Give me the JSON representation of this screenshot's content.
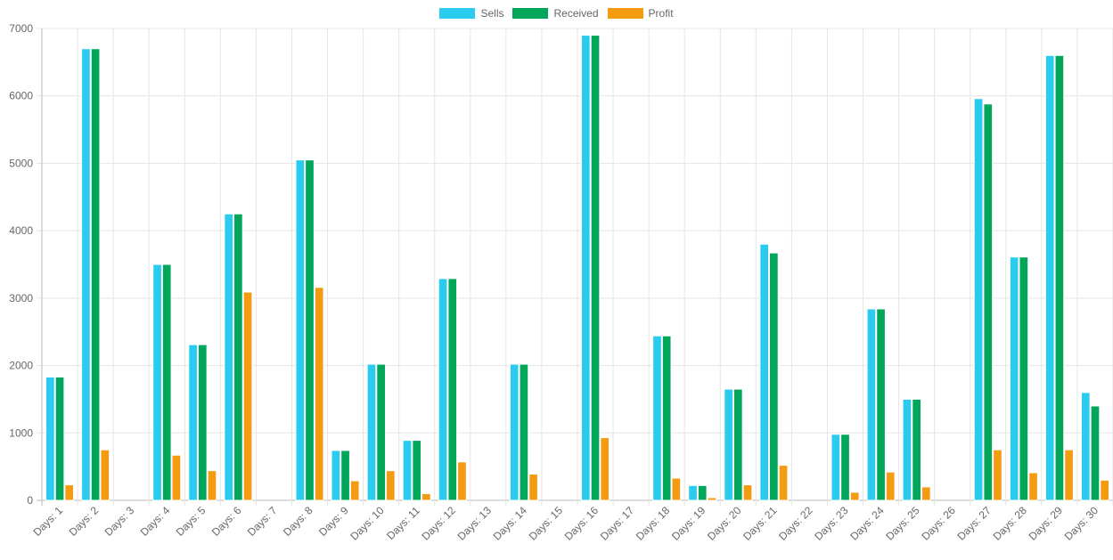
{
  "chart_data": {
    "type": "bar",
    "categories": [
      "Days: 1",
      "Days: 2",
      "Days: 3",
      "Days: 4",
      "Days: 5",
      "Days: 6",
      "Days: 7",
      "Days: 8",
      "Days: 9",
      "Days: 10",
      "Days: 11",
      "Days: 12",
      "Days: 13",
      "Days: 14",
      "Days: 15",
      "Days: 16",
      "Days: 17",
      "Days: 18",
      "Days: 19",
      "Days: 20",
      "Days: 21",
      "Days: 22",
      "Days: 23",
      "Days: 24",
      "Days: 25",
      "Days: 26",
      "Days: 27",
      "Days: 28",
      "Days: 29",
      "Days: 30"
    ],
    "series": [
      {
        "name": "Sells",
        "color": "#2bcbf0",
        "values": [
          1830,
          6700,
          0,
          3500,
          2310,
          4250,
          0,
          5050,
          740,
          2020,
          890,
          3290,
          0,
          2020,
          0,
          6900,
          0,
          2440,
          220,
          1650,
          3800,
          0,
          980,
          2840,
          1500,
          0,
          5960,
          3610,
          6600,
          1600
        ]
      },
      {
        "name": "Received",
        "color": "#00a65a",
        "values": [
          1830,
          6700,
          0,
          3500,
          2310,
          4250,
          0,
          5050,
          740,
          2020,
          890,
          3290,
          0,
          2020,
          0,
          6900,
          0,
          2440,
          220,
          1650,
          3670,
          0,
          980,
          2840,
          1500,
          0,
          5880,
          3610,
          6600,
          1400
        ]
      },
      {
        "name": "Profit",
        "color": "#f39c12",
        "values": [
          230,
          750,
          0,
          670,
          440,
          3090,
          0,
          3160,
          290,
          440,
          100,
          570,
          0,
          390,
          0,
          930,
          0,
          330,
          40,
          230,
          520,
          0,
          120,
          420,
          200,
          0,
          750,
          410,
          750,
          300
        ]
      }
    ],
    "ylim": [
      0,
      7000
    ],
    "yticks": [
      0,
      1000,
      2000,
      3000,
      4000,
      5000,
      6000,
      7000
    ],
    "title": "",
    "xlabel": "",
    "ylabel": "",
    "grid": true,
    "legend_position": "top-center"
  }
}
